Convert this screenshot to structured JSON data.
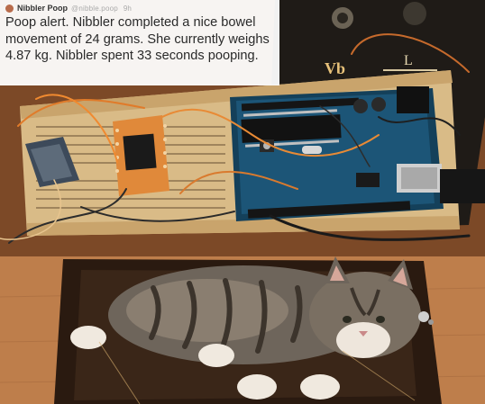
{
  "tweet": {
    "author_name": "Nibbler Poop",
    "author_handle": "@nibble.poop",
    "time": "9h",
    "avatar_icon": "cat-avatar-icon",
    "text": "Poop alert. Nibbler completed a nice bowel movement of 24 grams. She currently weighs 4.87 kg. Nibbler spent 33 seconds pooping."
  },
  "photo_top": {
    "board_markings": [
      "Vb",
      "L"
    ]
  }
}
